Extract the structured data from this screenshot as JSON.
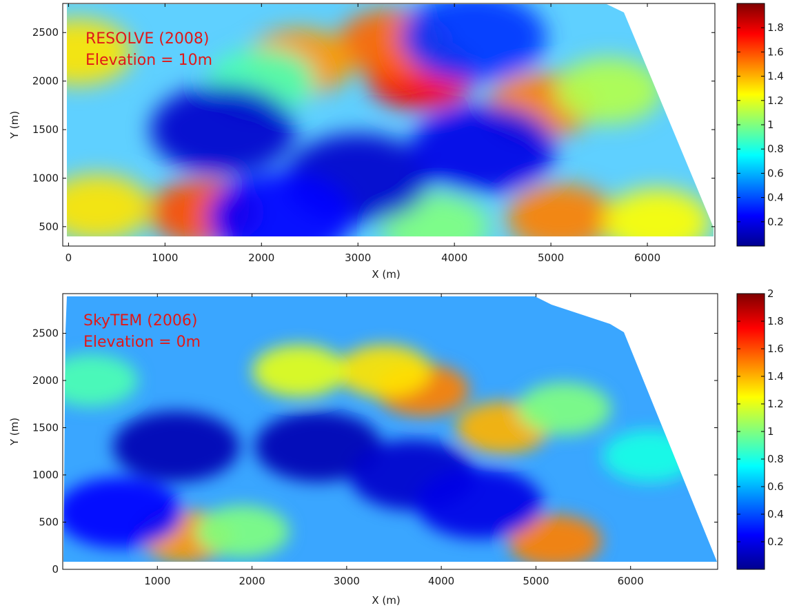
{
  "colors": {
    "axis": "#000000",
    "annotation": "#e01818",
    "colormap": "jet"
  },
  "chart_data": [
    {
      "type": "heatmap",
      "xlabel": "X (m)",
      "ylabel": "Y (m)",
      "xlim": [
        -60,
        6700
      ],
      "ylim": [
        300,
        2800
      ],
      "xticks": [
        0,
        1000,
        2000,
        3000,
        4000,
        5000,
        6000
      ],
      "yticks": [
        500,
        1000,
        1500,
        2000,
        2500
      ],
      "colorbar": {
        "min": 0,
        "max": 2,
        "ticks": [
          0.2,
          0.4,
          0.6,
          0.8,
          1,
          1.2,
          1.4,
          1.6,
          1.8
        ]
      },
      "annotations": [
        "RESOLVE (2008)",
        "Elevation = 10m"
      ],
      "features": [
        {
          "kind": "high",
          "x": 3650,
          "y": 2050,
          "value": 1.75
        },
        {
          "kind": "high",
          "x": 3350,
          "y": 2400,
          "value": 1.55
        },
        {
          "kind": "high",
          "x": 2400,
          "y": 2200,
          "value": 1.45
        },
        {
          "kind": "high",
          "x": 1400,
          "y": 650,
          "value": 1.6
        },
        {
          "kind": "high",
          "x": 5100,
          "y": 600,
          "value": 1.5
        },
        {
          "kind": "high",
          "x": 4900,
          "y": 1750,
          "value": 1.5
        },
        {
          "kind": "high",
          "x": 6100,
          "y": 550,
          "value": 1.25
        },
        {
          "kind": "high",
          "x": 300,
          "y": 700,
          "value": 1.3
        },
        {
          "kind": "high",
          "x": 100,
          "y": 2300,
          "value": 1.3
        },
        {
          "kind": "high",
          "x": 3800,
          "y": 500,
          "value": 1.0
        },
        {
          "kind": "high",
          "x": 2000,
          "y": 2000,
          "value": 0.9
        },
        {
          "kind": "high",
          "x": 5600,
          "y": 1900,
          "value": 1.1
        },
        {
          "kind": "low",
          "x": 1600,
          "y": 1500,
          "value": 0.15
        },
        {
          "kind": "low",
          "x": 3000,
          "y": 1000,
          "value": 0.15
        },
        {
          "kind": "low",
          "x": 4300,
          "y": 1300,
          "value": 0.2
        },
        {
          "kind": "low",
          "x": 4200,
          "y": 2450,
          "value": 0.35
        },
        {
          "kind": "low",
          "x": 2200,
          "y": 600,
          "value": 0.25
        }
      ]
    },
    {
      "type": "heatmap",
      "xlabel": "X (m)",
      "ylabel": "Y (m)",
      "xlim": [
        0,
        6920
      ],
      "ylim": [
        0,
        2920
      ],
      "xticks": [
        1000,
        2000,
        3000,
        4000,
        5000,
        6000
      ],
      "yticks": [
        0,
        500,
        1000,
        1500,
        2000,
        2500
      ],
      "colorbar": {
        "min": 0,
        "max": 2,
        "ticks": [
          0.2,
          0.4,
          0.6,
          0.8,
          1,
          1.2,
          1.4,
          1.6,
          1.8,
          2
        ]
      },
      "annotations": [
        "SkyTEM (2006)",
        "Elevation = 0m"
      ],
      "features": [
        {
          "kind": "high",
          "x": 3800,
          "y": 1900,
          "value": 1.5
        },
        {
          "kind": "high",
          "x": 3400,
          "y": 2100,
          "value": 1.3
        },
        {
          "kind": "high",
          "x": 2500,
          "y": 2100,
          "value": 1.2
        },
        {
          "kind": "high",
          "x": 4650,
          "y": 1500,
          "value": 1.4
        },
        {
          "kind": "high",
          "x": 5200,
          "y": 300,
          "value": 1.5
        },
        {
          "kind": "high",
          "x": 1300,
          "y": 350,
          "value": 1.45
        },
        {
          "kind": "high",
          "x": 1900,
          "y": 400,
          "value": 1.0
        },
        {
          "kind": "high",
          "x": 5300,
          "y": 1700,
          "value": 1.0
        },
        {
          "kind": "high",
          "x": 300,
          "y": 2000,
          "value": 0.9
        },
        {
          "kind": "high",
          "x": 6200,
          "y": 1200,
          "value": 0.8
        },
        {
          "kind": "low",
          "x": 1200,
          "y": 1300,
          "value": 0.1
        },
        {
          "kind": "low",
          "x": 2700,
          "y": 1300,
          "value": 0.1
        },
        {
          "kind": "low",
          "x": 3700,
          "y": 1000,
          "value": 0.15
        },
        {
          "kind": "low",
          "x": 4400,
          "y": 700,
          "value": 0.2
        },
        {
          "kind": "low",
          "x": 600,
          "y": 600,
          "value": 0.25
        }
      ]
    }
  ]
}
